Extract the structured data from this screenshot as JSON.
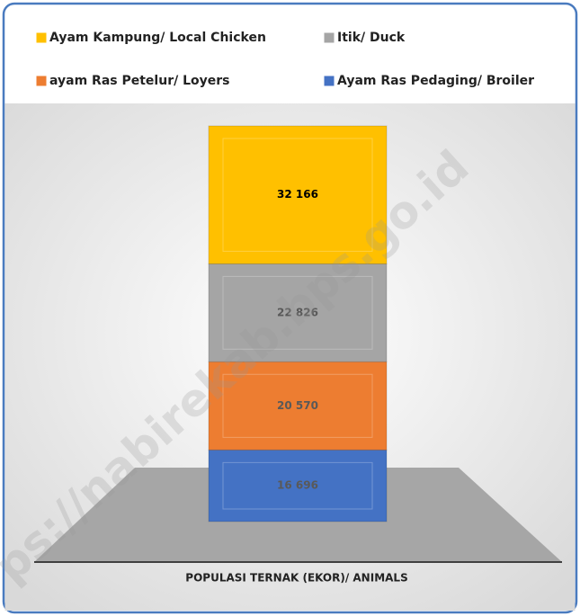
{
  "chart_data": {
    "type": "stacked_bar",
    "categories": [
      "POPULASI TERNAK (EKOR)/ ANIMALS"
    ],
    "series": [
      {
        "name": "Ayam Ras Pedaging/ Broiler",
        "color": "#4472c4",
        "values": [
          16696
        ],
        "value_labels": [
          "16 696"
        ]
      },
      {
        "name": "ayam Ras Petelur/ Loyers",
        "color": "#ed7d31",
        "values": [
          20570
        ],
        "value_labels": [
          "20 570"
        ]
      },
      {
        "name": "Itik/ Duck",
        "color": "#a5a5a5",
        "values": [
          22826
        ],
        "value_labels": [
          "22 826"
        ]
      },
      {
        "name": "Ayam Kampung/ Local Chicken",
        "color": "#ffc000",
        "values": [
          32166
        ],
        "value_labels": [
          "32 166"
        ]
      }
    ],
    "watermark": "ps://nabirekab.bps.go.id"
  }
}
